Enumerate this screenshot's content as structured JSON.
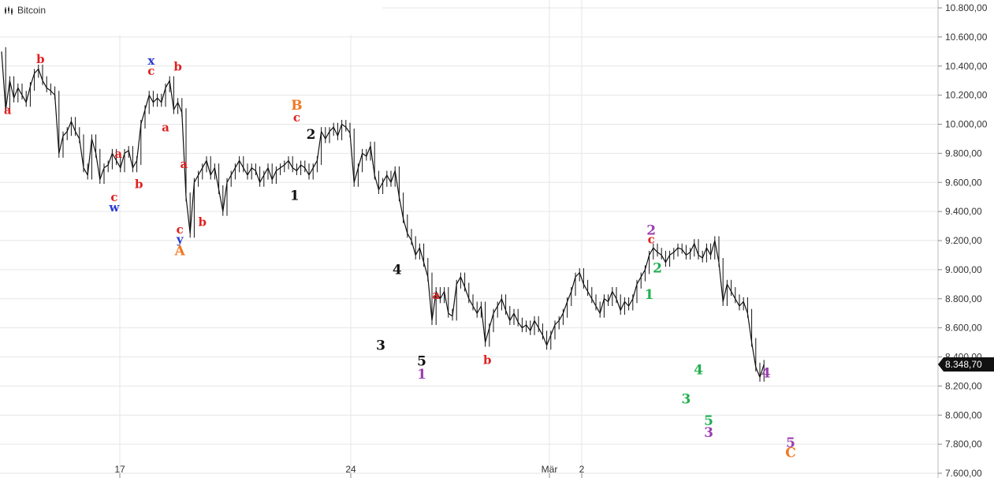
{
  "chart_data": {
    "type": "line",
    "title": "Bitcoin",
    "ylim": [
      7600,
      10800
    ],
    "y_ticks": [
      10800,
      10600,
      10400,
      10200,
      10000,
      9800,
      9600,
      9400,
      9200,
      9000,
      8800,
      8600,
      8400,
      8200,
      8000,
      7800,
      7600
    ],
    "y_tick_labels": [
      "10.800,00",
      "10.600,00",
      "10.400,00",
      "10.200,00",
      "10.000,00",
      "9.800,00",
      "9.600,00",
      "9.400,00",
      "9.200,00",
      "9.000,00",
      "8.800,00",
      "8.600,00",
      "8.400,00",
      "8.200,00",
      "8.000,00",
      "7.800,00",
      "7.600,00"
    ],
    "x_ticks": [
      {
        "label": "17"
      },
      {
        "label": "24"
      },
      {
        "label": "Mär"
      },
      {
        "label": "2"
      }
    ],
    "grid": true,
    "last_price": 8348.7,
    "last_price_label": "8.348,70",
    "series": [
      {
        "values": [
          10500,
          10100,
          10300,
          10180,
          10250,
          10200,
          10150,
          10260,
          10350,
          10380,
          10300,
          10250,
          10230,
          10200,
          9800,
          9920,
          9950,
          10020,
          9950,
          9900,
          9700,
          9650,
          9900,
          9800,
          9620,
          9700,
          9720,
          9800,
          9750,
          9700,
          9800,
          9820,
          9700,
          9750,
          10000,
          10100,
          10200,
          10150,
          10180,
          10150,
          10250,
          10300,
          10100,
          10150,
          10080,
          9500,
          9250,
          9600,
          9650,
          9700,
          9750,
          9650,
          9700,
          9550,
          9400,
          9600,
          9650,
          9700,
          9750,
          9700,
          9650,
          9700,
          9680,
          9600,
          9650,
          9700,
          9620,
          9680,
          9700,
          9720,
          9750,
          9700,
          9680,
          9720,
          9700,
          9650,
          9700,
          9750,
          9950,
          9900,
          9950,
          9980,
          9920,
          10000,
          9980,
          9940,
          9600,
          9700,
          9800,
          9780,
          9850,
          9650,
          9550,
          9600,
          9650,
          9600,
          9680,
          9500,
          9350,
          9250,
          9200,
          9100,
          9150,
          9050,
          8950,
          8650,
          8850,
          8800,
          8850,
          8700,
          8680,
          8900,
          8950,
          8880,
          8800,
          8750,
          8700,
          8750,
          8500,
          8600,
          8700,
          8750,
          8800,
          8720,
          8650,
          8700,
          8640,
          8600,
          8620,
          8580,
          8650,
          8600,
          8550,
          8480,
          8550,
          8620,
          8650,
          8700,
          8780,
          8850,
          8950,
          8980,
          8900,
          8850,
          8800,
          8750,
          8700,
          8800,
          8780,
          8850,
          8800,
          8720,
          8780,
          8750,
          8800,
          8900,
          8950,
          9000,
          9100,
          9150,
          9120,
          9100,
          9050,
          9100,
          9120,
          9150,
          9140,
          9100,
          9120,
          9180,
          9100,
          9080,
          9150,
          9100,
          9200,
          9050,
          8780,
          8900,
          8850,
          8800,
          8750,
          8780,
          8700,
          8500,
          8330,
          8260,
          8349
        ]
      }
    ],
    "annotations": [
      {
        "text": "a",
        "x": 1.5,
        "y": 10070,
        "color": "#e02020"
      },
      {
        "text": "b",
        "x": 9.5,
        "y": 10420,
        "color": "#e02020"
      },
      {
        "text": "a",
        "x": 28.5,
        "y": 9770,
        "color": "#e02020"
      },
      {
        "text": "b",
        "x": 33.5,
        "y": 9560,
        "color": "#e02020"
      },
      {
        "text": "c",
        "x": 27.5,
        "y": 9470,
        "color": "#e02020"
      },
      {
        "text": "w",
        "x": 27.5,
        "y": 9400,
        "color": "#2a3bd0"
      },
      {
        "text": "x",
        "x": 36.5,
        "y": 10410,
        "color": "#2a3bd0"
      },
      {
        "text": "c",
        "x": 36.5,
        "y": 10340,
        "color": "#e02020"
      },
      {
        "text": "a",
        "x": 40,
        "y": 9950,
        "color": "#e02020"
      },
      {
        "text": "b",
        "x": 43,
        "y": 10370,
        "color": "#e02020"
      },
      {
        "text": "a",
        "x": 44.5,
        "y": 9700,
        "color": "#e02020"
      },
      {
        "text": "c",
        "x": 43.5,
        "y": 9250,
        "color": "#e02020"
      },
      {
        "text": "y",
        "x": 43.5,
        "y": 9180,
        "color": "#2a3bd0"
      },
      {
        "text": "A",
        "x": 43.5,
        "y": 9100,
        "color": "#f07820"
      },
      {
        "text": "b",
        "x": 49,
        "y": 9300,
        "color": "#e02020"
      },
      {
        "text": "B",
        "x": 72,
        "y": 10100,
        "color": "#f07820"
      },
      {
        "text": "c",
        "x": 72,
        "y": 10020,
        "color": "#e02020"
      },
      {
        "text": "1",
        "x": 71.5,
        "y": 9480,
        "color": "#111111"
      },
      {
        "text": "2",
        "x": 75.5,
        "y": 9900,
        "color": "#111111"
      },
      {
        "text": "3",
        "x": 92.5,
        "y": 8450,
        "color": "#111111"
      },
      {
        "text": "4",
        "x": 96.5,
        "y": 8970,
        "color": "#111111"
      },
      {
        "text": "a",
        "x": 106,
        "y": 8800,
        "color": "#e02020"
      },
      {
        "text": "5",
        "x": 102.5,
        "y": 8340,
        "color": "#111111"
      },
      {
        "text": "1",
        "x": 102.5,
        "y": 8250,
        "color": "#9b3fb0"
      },
      {
        "text": "b",
        "x": 118.5,
        "y": 8350,
        "color": "#e02020"
      },
      {
        "text": "2",
        "x": 158.5,
        "y": 9240,
        "color": "#9b3fb0"
      },
      {
        "text": "c",
        "x": 158.5,
        "y": 9180,
        "color": "#e02020"
      },
      {
        "text": "2",
        "x": 160,
        "y": 8980,
        "color": "#20b050"
      },
      {
        "text": "1",
        "x": 158,
        "y": 8800,
        "color": "#20b050"
      },
      {
        "text": "4",
        "x": 170,
        "y": 8280,
        "color": "#20b050"
      },
      {
        "text": "3",
        "x": 167,
        "y": 8080,
        "color": "#20b050"
      },
      {
        "text": "5",
        "x": 172.5,
        "y": 7930,
        "color": "#20b050"
      },
      {
        "text": "3",
        "x": 172.5,
        "y": 7850,
        "color": "#9b3fb0"
      },
      {
        "text": "4",
        "x": 186.5,
        "y": 8260,
        "color": "#9b3fb0"
      },
      {
        "text": "5",
        "x": 192.5,
        "y": 7780,
        "color": "#9b3fb0"
      },
      {
        "text": "C",
        "x": 192.5,
        "y": 7710,
        "color": "#f07820"
      }
    ]
  }
}
